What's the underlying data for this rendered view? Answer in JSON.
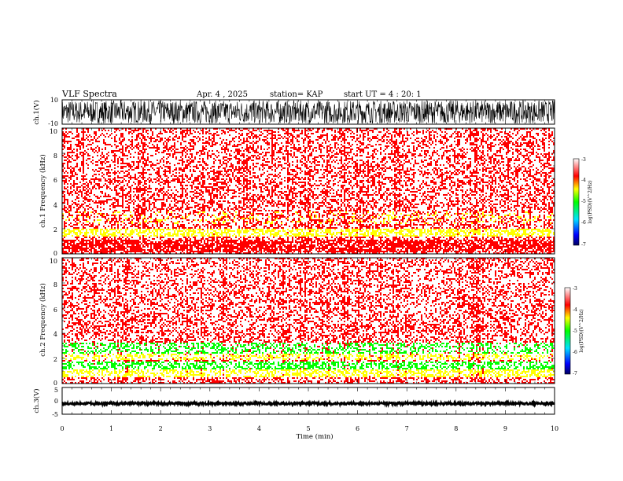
{
  "header": {
    "title": "VLF Spectra",
    "date": "Apr. 4 , 2025",
    "station": "station= KAP",
    "start": "start UT = 4 : 20: 1"
  },
  "colors": {
    "spectrogram_background": "#ffffff",
    "high_power": "#ff0000",
    "mid_power": "#ffff00",
    "low_power": "#00ff00"
  },
  "chart_data": [
    {
      "type": "line",
      "id": "ch1-waveform",
      "ylabel": "ch.1(V)",
      "ylim": [
        -10,
        10
      ],
      "yticks": [
        "10",
        "-10"
      ],
      "xlim": [
        0,
        10
      ]
    },
    {
      "type": "heatmap",
      "id": "ch1-spectrogram",
      "ylabel": "ch.1 Frequency (kHz)",
      "ylim": [
        0,
        10
      ],
      "yticks": [
        "0",
        "2",
        "4",
        "6",
        "8",
        "10"
      ],
      "xlim": [
        0,
        10
      ],
      "colorbar": {
        "label": "log(PSD)(V^2/Hz)",
        "range": [
          -7,
          -3
        ],
        "ticks": [
          "-3",
          "-4",
          "-5",
          "-6",
          "-7"
        ]
      }
    },
    {
      "type": "heatmap",
      "id": "ch2-spectrogram",
      "ylabel": "ch.2 Frequency (kHz)",
      "ylim": [
        0,
        10
      ],
      "yticks": [
        "0",
        "2",
        "4",
        "6",
        "8",
        "10"
      ],
      "xlim": [
        0,
        10
      ],
      "colorbar": {
        "label": "log(PSD)(V^2/Hz)",
        "range": [
          -7,
          -3
        ],
        "ticks": [
          "-3",
          "-4",
          "-5",
          "-6",
          "-7"
        ]
      }
    },
    {
      "type": "line",
      "id": "ch3-waveform",
      "ylabel": "ch.3(V)",
      "ylim": [
        -5,
        5
      ],
      "yticks": [
        "5",
        "0",
        "-5"
      ],
      "xlim": [
        0,
        10
      ]
    }
  ],
  "xaxis": {
    "label": "Time (min)",
    "ticks": [
      "0",
      "1",
      "2",
      "3",
      "4",
      "5",
      "6",
      "7",
      "8",
      "9",
      "10"
    ]
  }
}
